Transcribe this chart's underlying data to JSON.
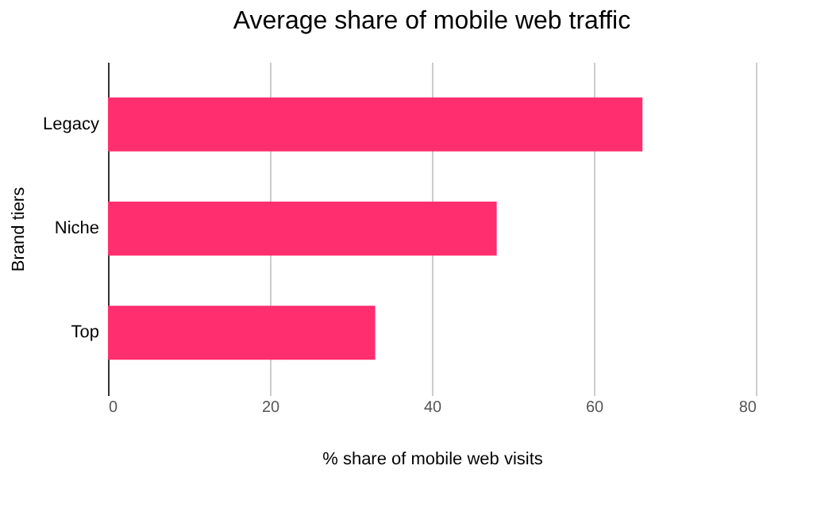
{
  "chart_data": {
    "type": "bar",
    "orientation": "horizontal",
    "title": "Average share of mobile web traffic",
    "xlabel": "% share of mobile web visits",
    "ylabel": "Brand tiers",
    "categories": [
      "Legacy",
      "Niche",
      "Top"
    ],
    "values": [
      66,
      48,
      33
    ],
    "color": "#ff2e6e",
    "xlim": [
      0,
      80
    ],
    "xticks": [
      0,
      20,
      40,
      60,
      80
    ],
    "grid": "x"
  }
}
